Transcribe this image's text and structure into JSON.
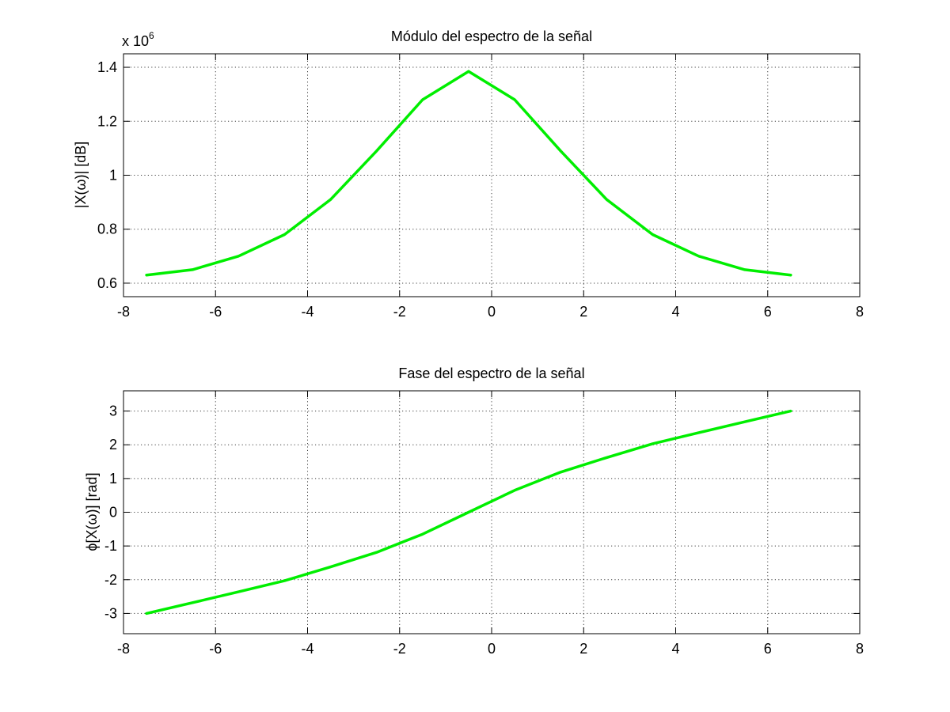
{
  "figure": {
    "background": "#ffffff",
    "line_color": "#00ee00",
    "grid_style": "dotted"
  },
  "chart_data": [
    {
      "type": "line",
      "title": "Módulo del espectro de la señal",
      "xlabel": "",
      "ylabel": "|X(ω)| [dB]",
      "exponent_label": "x 10",
      "exponent_power": "6",
      "xlim": [
        -8,
        8
      ],
      "ylim": [
        0.55,
        1.45
      ],
      "xticks": [
        -8,
        -6,
        -4,
        -2,
        0,
        2,
        4,
        6,
        8
      ],
      "xtick_labels": [
        "-8",
        "-6",
        "-4",
        "-2",
        "0",
        "2",
        "4",
        "6",
        "8"
      ],
      "yticks": [
        0.6,
        0.8,
        1.0,
        1.2,
        1.4
      ],
      "ytick_labels": [
        "0.6",
        "0.8",
        "1",
        "1.2",
        "1.4"
      ],
      "grid": true,
      "series": [
        {
          "x": [
            -7.5,
            -6.5,
            -5.5,
            -4.5,
            -3.5,
            -2.5,
            -1.5,
            -0.5,
            0.5,
            1.5,
            2.5,
            3.5,
            4.5,
            5.5,
            6.5
          ],
          "y": [
            0.63,
            0.65,
            0.7,
            0.78,
            0.91,
            1.09,
            1.28,
            1.385,
            1.28,
            1.09,
            0.91,
            0.78,
            0.7,
            0.65,
            0.63
          ]
        }
      ]
    },
    {
      "type": "line",
      "title": "Fase del espectro de la señal",
      "xlabel": "",
      "ylabel": "ϕ[X(ω)] [rad]",
      "xlim": [
        -8,
        8
      ],
      "ylim": [
        -3.6,
        3.6
      ],
      "xticks": [
        -8,
        -6,
        -4,
        -2,
        0,
        2,
        4,
        6,
        8
      ],
      "xtick_labels": [
        "-8",
        "-6",
        "-4",
        "-2",
        "0",
        "2",
        "4",
        "6",
        "8"
      ],
      "yticks": [
        -3,
        -2,
        -1,
        0,
        1,
        2,
        3
      ],
      "ytick_labels": [
        "-3",
        "-2",
        "-1",
        "0",
        "1",
        "2",
        "3"
      ],
      "grid": true,
      "series": [
        {
          "x": [
            -7.5,
            -6.5,
            -5.5,
            -4.5,
            -3.5,
            -2.5,
            -1.5,
            -0.5,
            0.5,
            1.5,
            2.5,
            3.5,
            4.5,
            5.5,
            6.5
          ],
          "y": [
            -3.0,
            -2.68,
            -2.36,
            -2.03,
            -1.62,
            -1.19,
            -0.65,
            0.0,
            0.65,
            1.19,
            1.62,
            2.03,
            2.36,
            2.68,
            3.0
          ]
        }
      ]
    }
  ]
}
